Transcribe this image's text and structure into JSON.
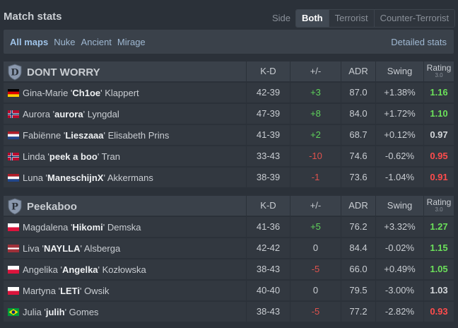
{
  "header": {
    "title": "Match stats",
    "side_label": "Side",
    "side_tabs": [
      "Both",
      "Terrorist",
      "Counter-Terrorist"
    ],
    "active_side": "Both"
  },
  "maps": {
    "tabs": [
      "All maps",
      "Nuke",
      "Ancient",
      "Mirage"
    ],
    "active": "All maps",
    "detailed_link": "Detailed stats"
  },
  "columns": {
    "kd": "K-D",
    "plusminus": "+/-",
    "adr": "ADR",
    "swing": "Swing",
    "rating": "Rating",
    "rating_sub": "3.0"
  },
  "colors": {
    "positive": "#5fd35b",
    "negative": "#e0524d",
    "rating_good": "#6be05a",
    "rating_bad": "#ff4c4c"
  },
  "teams": [
    {
      "name": "DONT WORRY",
      "logo_letter": "D",
      "players": [
        {
          "first": "Gina-Marie '",
          "nick": "Ch1oe",
          "last": "' Klappert",
          "flag": "germany",
          "kd": "42-39",
          "pm": "+3",
          "adr": "87.0",
          "swing": "+1.38%",
          "rating": "1.16"
        },
        {
          "first": "Aurora '",
          "nick": "aurora",
          "last": "' Lyngdal",
          "flag": "norway",
          "kd": "47-39",
          "pm": "+8",
          "adr": "84.0",
          "swing": "+1.72%",
          "rating": "1.10"
        },
        {
          "first": "Fabiënne '",
          "nick": "Lieszaaa",
          "last": "' Elisabeth Prins",
          "flag": "netherlands",
          "kd": "41-39",
          "pm": "+2",
          "adr": "68.7",
          "swing": "+0.12%",
          "rating": "0.97"
        },
        {
          "first": "Linda '",
          "nick": "peek a boo",
          "last": "' Tran",
          "flag": "norway",
          "kd": "33-43",
          "pm": "-10",
          "adr": "74.6",
          "swing": "-0.62%",
          "rating": "0.95"
        },
        {
          "first": "Luna '",
          "nick": "ManeschijnX",
          "last": "' Akkermans",
          "flag": "netherlands",
          "kd": "38-39",
          "pm": "-1",
          "adr": "73.6",
          "swing": "-1.04%",
          "rating": "0.91"
        }
      ]
    },
    {
      "name": "Peekaboo",
      "logo_letter": "P",
      "players": [
        {
          "first": "Magdalena '",
          "nick": "Hikomi",
          "last": "' Demska",
          "flag": "poland",
          "kd": "41-36",
          "pm": "+5",
          "adr": "76.2",
          "swing": "+3.32%",
          "rating": "1.27"
        },
        {
          "first": "Liva '",
          "nick": "NAYLLA",
          "last": "' Alsberga",
          "flag": "latvia",
          "kd": "42-42",
          "pm": "0",
          "adr": "84.4",
          "swing": "-0.02%",
          "rating": "1.15"
        },
        {
          "first": "Angelika '",
          "nick": "Angelka",
          "last": "' Kozłowska",
          "flag": "poland",
          "kd": "38-43",
          "pm": "-5",
          "adr": "66.0",
          "swing": "+0.49%",
          "rating": "1.05"
        },
        {
          "first": "Martyna '",
          "nick": "LETi",
          "last": "' Owsik",
          "flag": "poland",
          "kd": "40-40",
          "pm": "0",
          "adr": "79.5",
          "swing": "-3.00%",
          "rating": "1.03"
        },
        {
          "first": "Julia '",
          "nick": "julih",
          "last": "' Gomes",
          "flag": "brazil",
          "kd": "38-43",
          "pm": "-5",
          "adr": "77.2",
          "swing": "-2.82%",
          "rating": "0.93"
        }
      ]
    }
  ]
}
